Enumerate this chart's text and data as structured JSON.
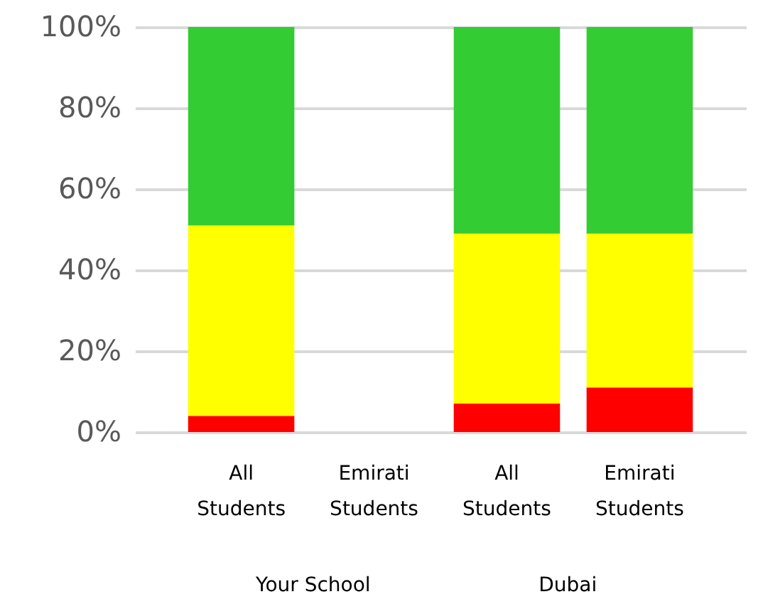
{
  "chart_data": {
    "type": "bar",
    "stacked": true,
    "categories": [
      "All Students",
      "Emirati Students",
      "All Students",
      "Emirati Students"
    ],
    "series": [
      {
        "color": "#ff0000",
        "values": [
          4,
          null,
          7,
          11
        ]
      },
      {
        "color": "#ffff00",
        "values": [
          47,
          null,
          42,
          38
        ]
      },
      {
        "color": "#33cc33",
        "values": [
          49,
          null,
          51,
          51
        ]
      }
    ],
    "ylim": [
      0,
      100
    ],
    "yticks": [
      {
        "value": 0,
        "label": "0%"
      },
      {
        "value": 20,
        "label": "20%"
      },
      {
        "value": 40,
        "label": "40%"
      },
      {
        "value": 60,
        "label": "60%"
      },
      {
        "value": 80,
        "label": "80%"
      },
      {
        "value": 100,
        "label": "100%"
      }
    ],
    "grid": "y",
    "legend": false,
    "annotations": [
      "Your School",
      "Dubai"
    ]
  }
}
